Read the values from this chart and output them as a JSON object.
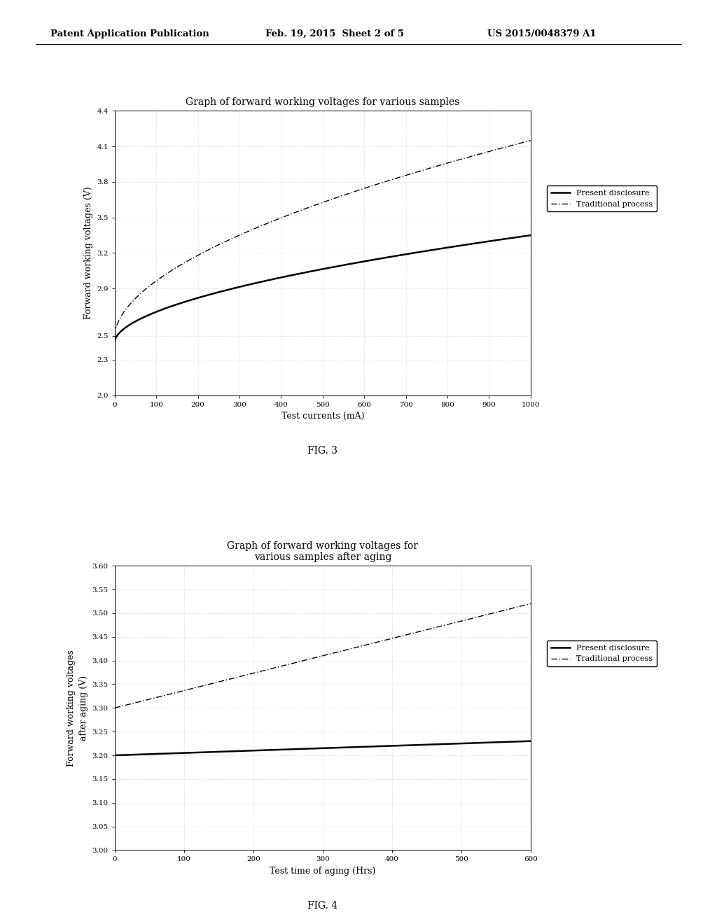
{
  "header_left": "Patent Application Publication",
  "header_mid": "Feb. 19, 2015  Sheet 2 of 5",
  "header_right": "US 2015/0048379 A1",
  "fig3": {
    "title": "Graph of forward working voltages for various samples",
    "xlabel": "Test currents (mA)",
    "ylabel": "Forward working voltages (V)",
    "xlim": [
      0,
      1000
    ],
    "ylim": [
      2.0,
      4.4
    ],
    "ytick_vals": [
      2.0,
      2.3,
      2.5,
      2.9,
      3.2,
      3.5,
      3.8,
      4.1,
      4.4
    ],
    "ytick_labels": [
      "2.0",
      "2.3",
      "2.5",
      "2.9",
      "3.2",
      "3.5",
      "3.8",
      "4.1",
      "4.4"
    ],
    "xtick_vals": [
      0,
      100,
      200,
      300,
      400,
      500,
      600,
      700,
      800,
      900,
      1000
    ],
    "xtick_labels": [
      "0",
      "100",
      "200",
      "300",
      "400",
      "500",
      "600",
      "700",
      "800",
      "900",
      "1000"
    ],
    "legend1": "Present disclosure",
    "legend2": "Traditional process",
    "figname": "FIG. 3",
    "present_start": 2.45,
    "present_end": 3.35,
    "trad_start": 2.5,
    "trad_end": 4.15,
    "power": 0.55
  },
  "fig4": {
    "title": "Graph of forward working voltages for\nvarious samples after aging",
    "xlabel": "Test time of aging (Hrs)",
    "ylabel": "Forward working voltages\nafter aging (V)",
    "xlim": [
      0,
      600
    ],
    "ylim": [
      3.0,
      3.6
    ],
    "ytick_vals": [
      3.0,
      3.05,
      3.1,
      3.15,
      3.2,
      3.25,
      3.3,
      3.35,
      3.4,
      3.45,
      3.5,
      3.55,
      3.6
    ],
    "ytick_labels": [
      "3.00",
      "3.05",
      "3.10",
      "3.15",
      "3.20",
      "3.25",
      "3.30",
      "3.35",
      "3.40",
      "3.45",
      "3.50",
      "3.55",
      "3.60"
    ],
    "xtick_vals": [
      0,
      100,
      200,
      300,
      400,
      500,
      600
    ],
    "xtick_labels": [
      "0",
      "100",
      "200",
      "300",
      "400",
      "500",
      "600"
    ],
    "legend1": "Present disclosure",
    "legend2": "Traditional process",
    "figname": "FIG. 4",
    "present_start": 3.2,
    "present_end": 3.23,
    "trad_start": 3.3,
    "trad_end": 3.52
  },
  "background_color": "#ffffff",
  "line_color": "#000000",
  "grid_color": "#bbbbbb"
}
